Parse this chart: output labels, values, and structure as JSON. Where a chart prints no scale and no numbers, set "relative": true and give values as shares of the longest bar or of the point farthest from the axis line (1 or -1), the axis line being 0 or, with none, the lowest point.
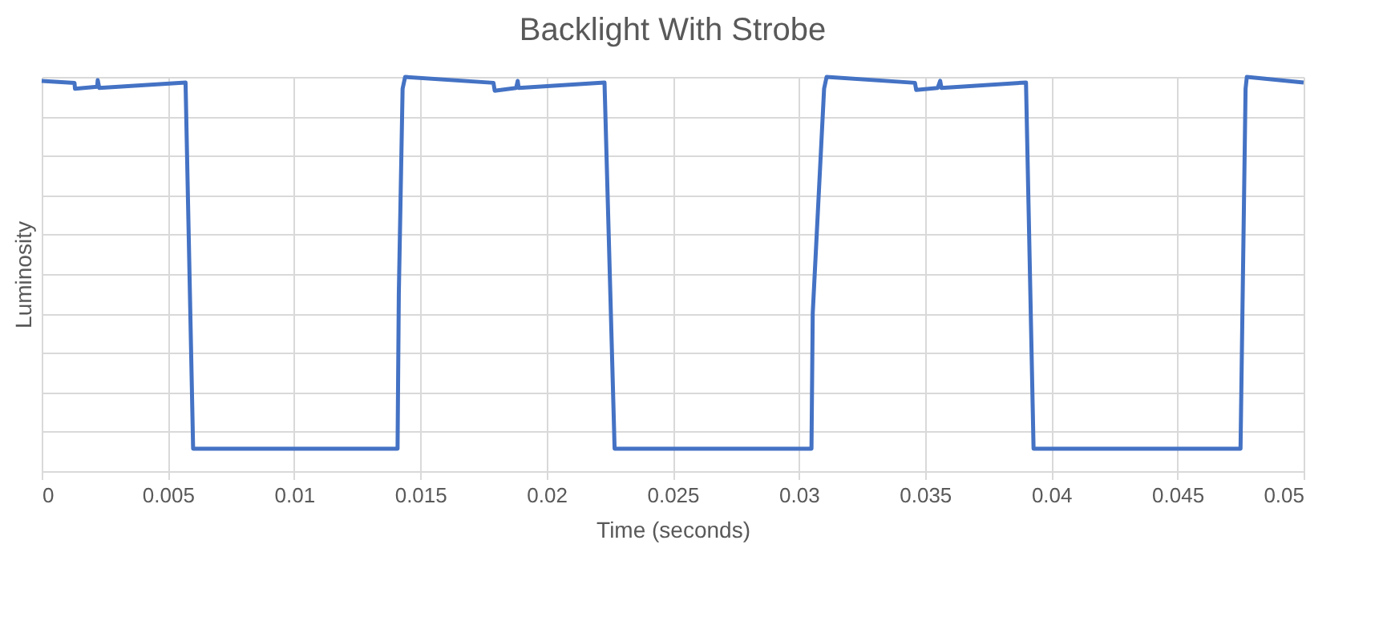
{
  "chart_data": {
    "type": "line",
    "title": "Backlight With Strobe",
    "xlabel": "Time (seconds)",
    "ylabel": "Luminosity",
    "relative": true,
    "grid": true,
    "line_style": "solid",
    "xlim": [
      0,
      0.05
    ],
    "xticks": [
      0,
      0.005,
      0.01,
      0.015,
      0.02,
      0.025,
      0.03,
      0.035,
      0.04,
      0.045,
      0.05
    ],
    "x": [
      0,
      0.0013,
      0.00132,
      0.0022,
      0.00222,
      0.00228,
      0.0057,
      0.006,
      0.0141,
      0.01415,
      0.0143,
      0.0144,
      0.0179,
      0.01795,
      0.0188,
      0.01886,
      0.0189,
      0.0223,
      0.0227,
      0.0305,
      0.03055,
      0.031,
      0.0311,
      0.0346,
      0.03465,
      0.0355,
      0.0356,
      0.03565,
      0.039,
      0.0393,
      0.0475,
      0.0477,
      0.04775,
      0.05
    ],
    "series": [
      {
        "color": "#4472c4",
        "values": [
          0.99,
          0.985,
          0.97,
          0.975,
          0.992,
          0.972,
          0.986,
          0.057,
          0.057,
          0.45,
          0.97,
          1.0,
          0.985,
          0.965,
          0.972,
          0.99,
          0.972,
          0.986,
          0.057,
          0.057,
          0.4,
          0.97,
          1.0,
          0.985,
          0.967,
          0.972,
          0.99,
          0.972,
          0.986,
          0.057,
          0.057,
          0.97,
          1.0,
          0.986
        ]
      }
    ]
  }
}
